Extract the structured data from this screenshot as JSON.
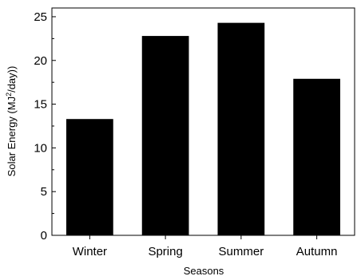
{
  "chart_data": {
    "type": "bar",
    "categories": [
      "Winter",
      "Spring",
      "Summer",
      "Autumn"
    ],
    "values": [
      13.3,
      22.8,
      24.3,
      17.9
    ],
    "xlabel": "Seasons",
    "ylabel": {
      "prefix": "Solar Energy (MJ",
      "superscript": "2",
      "suffix": "/day))"
    },
    "ylim": [
      0,
      26
    ],
    "yticks": [
      0,
      5,
      10,
      15,
      20,
      25
    ],
    "bar_color": "#000000",
    "grid": false,
    "legend": "none"
  }
}
